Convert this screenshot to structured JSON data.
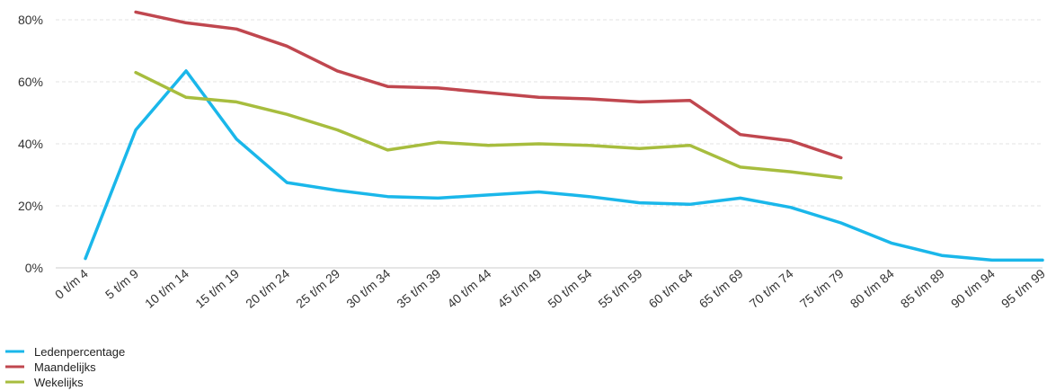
{
  "chart_data": {
    "type": "line",
    "categories": [
      "0 t/m 4",
      "5 t/m 9",
      "10 t/m 14",
      "15 t/m 19",
      "20 t/m 24",
      "25 t/m 29",
      "30 t/m 34",
      "35 t/m 39",
      "40 t/m 44",
      "45 t/m 49",
      "50 t/m 54",
      "55 t/m 59",
      "60 t/m 64",
      "65 t/m 69",
      "70 t/m 74",
      "75 t/m 79",
      "80 t/m 84",
      "85 t/m 89",
      "90 t/m 94",
      "95 t/m 99"
    ],
    "y_ticks": [
      "0%",
      "20%",
      "40%",
      "60%",
      "80%"
    ],
    "ylim": [
      0,
      80
    ],
    "grid": true,
    "legend_position": "bottom-left",
    "series": [
      {
        "name": "Ledenpercentage",
        "color": "#1ab7ea",
        "values": [
          3,
          44.5,
          63.5,
          41.5,
          27.5,
          25,
          23,
          22.5,
          23.5,
          24.5,
          23,
          21,
          20.5,
          22.5,
          19.5,
          14.5,
          8,
          4,
          2.5,
          2.5
        ]
      },
      {
        "name": "Maandelijks",
        "color": "#c0474f",
        "values": [
          null,
          82.5,
          79,
          77,
          71.5,
          63.5,
          58.5,
          58,
          56.5,
          55,
          54.5,
          53.5,
          54,
          43,
          41,
          35.5,
          null,
          null,
          null,
          null
        ]
      },
      {
        "name": "Wekelijks",
        "color": "#a7bd3e",
        "values": [
          null,
          63,
          55,
          53.5,
          49.5,
          44.5,
          38,
          40.5,
          39.5,
          40,
          39.5,
          38.5,
          39.5,
          32.5,
          31,
          29,
          null,
          null,
          null,
          null
        ]
      }
    ]
  }
}
